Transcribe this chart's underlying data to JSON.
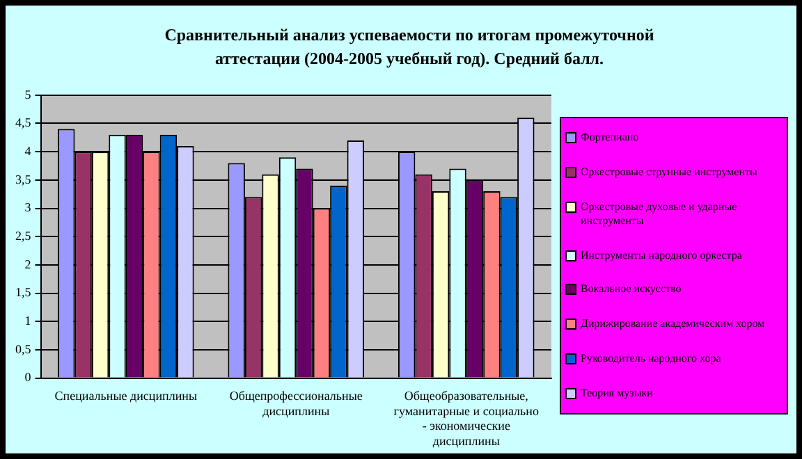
{
  "chart_data": {
    "type": "bar",
    "title": "Сравнительный анализ успеваемости по итогам промежуточной аттестации (2004-2005  учебный год).  Средний балл.",
    "categories": [
      "Специальные дисциплины",
      "Общепрофессиональные дисциплины",
      "Общеобразовательные, гуманитарные и социально - экономические дисциплины"
    ],
    "series": [
      {
        "name": "Фортепиано",
        "color": "#9999ff",
        "values": [
          4.4,
          3.8,
          4.0
        ]
      },
      {
        "name": "Оркестровые  струнные  инструменты",
        "color": "#993366",
        "values": [
          4.0,
          3.2,
          3.6
        ]
      },
      {
        "name": "Оркестровые  духовые  и ударные  инструменты",
        "color": "#ffffcc",
        "values": [
          4.0,
          3.6,
          3.3
        ]
      },
      {
        "name": "Инструменты народного оркестра",
        "color": "#ccffff",
        "values": [
          4.3,
          3.9,
          3.7
        ]
      },
      {
        "name": "Вокальное  искусство",
        "color": "#660066",
        "values": [
          4.3,
          3.7,
          3.5
        ]
      },
      {
        "name": "Дирижирование  академическим  хором",
        "color": "#ff8080",
        "values": [
          4.0,
          3.0,
          3.3
        ]
      },
      {
        "name": "Руководитель народного хора",
        "color": "#0066cc",
        "values": [
          4.3,
          3.4,
          3.2
        ]
      },
      {
        "name": "Теория музыки",
        "color": "#ccccff",
        "values": [
          4.1,
          4.2,
          4.6
        ]
      }
    ],
    "ylim": [
      0,
      5
    ],
    "yticks": [
      0,
      {
        "value": 0.5,
        "label": "0,5"
      },
      1,
      {
        "value": 1.5,
        "label": "1,5"
      },
      2,
      {
        "value": 2.5,
        "label": "2,5"
      },
      3,
      {
        "value": 3.5,
        "label": "3,5"
      },
      4,
      {
        "value": 4.5,
        "label": "4,5"
      },
      5
    ],
    "grid": "y",
    "legend": "right"
  }
}
